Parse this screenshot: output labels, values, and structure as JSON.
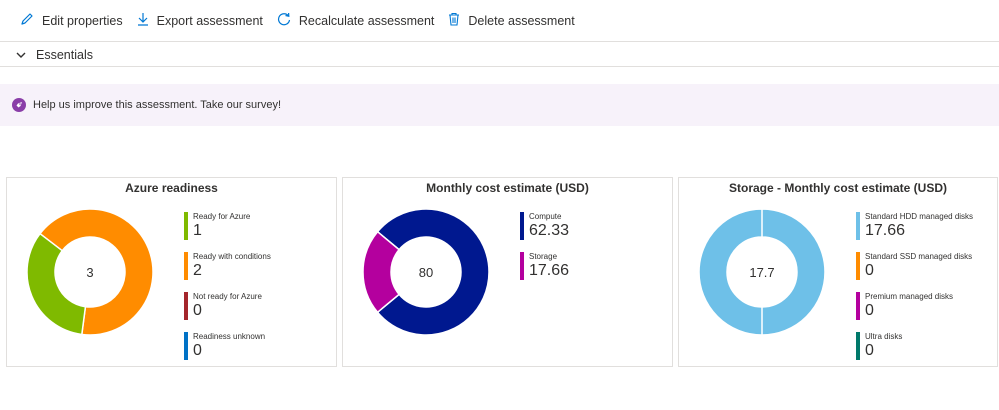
{
  "toolbar": {
    "edit_label": "Edit properties",
    "export_label": "Export assessment",
    "recalc_label": "Recalculate assessment",
    "delete_label": "Delete assessment"
  },
  "essentials": {
    "label": "Essentials"
  },
  "banner": {
    "text": "Help us improve this assessment. Take our survey!"
  },
  "cards": [
    {
      "title": "Azure readiness",
      "center": "3",
      "legend": [
        {
          "label": "Ready for Azure",
          "value": "1",
          "color": "#7fba00"
        },
        {
          "label": "Ready with conditions",
          "value": "2",
          "color": "#ff8c00"
        },
        {
          "label": "Not ready for Azure",
          "value": "0",
          "color": "#a4262c"
        },
        {
          "label": "Readiness unknown",
          "value": "0",
          "color": "#0072c6"
        }
      ]
    },
    {
      "title": "Monthly cost estimate (USD)",
      "center": "80",
      "legend": [
        {
          "label": "Compute",
          "value": "62.33",
          "color": "#00188f"
        },
        {
          "label": "Storage",
          "value": "17.66",
          "color": "#b4009e"
        }
      ]
    },
    {
      "title": "Storage - Monthly cost estimate (USD)",
      "center": "17.7",
      "legend": [
        {
          "label": "Standard HDD managed disks",
          "value": "17.66",
          "color": "#6ec0e8"
        },
        {
          "label": "Standard SSD managed disks",
          "value": "0",
          "color": "#ff8c00"
        },
        {
          "label": "Premium managed disks",
          "value": "0",
          "color": "#b4009e"
        },
        {
          "label": "Ultra disks",
          "value": "0",
          "color": "#00796b"
        }
      ]
    }
  ],
  "chart_data": [
    {
      "type": "pie",
      "title": "Azure readiness",
      "categories": [
        "Ready for Azure",
        "Ready with conditions",
        "Not ready for Azure",
        "Readiness unknown"
      ],
      "values": [
        1,
        2,
        0,
        0
      ],
      "colors": [
        "#7fba00",
        "#ff8c00",
        "#a4262c",
        "#0072c6"
      ]
    },
    {
      "type": "pie",
      "title": "Monthly cost estimate (USD)",
      "categories": [
        "Compute",
        "Storage"
      ],
      "values": [
        62.33,
        17.66
      ],
      "colors": [
        "#00188f",
        "#b4009e"
      ]
    },
    {
      "type": "pie",
      "title": "Storage - Monthly cost estimate (USD)",
      "categories": [
        "Standard HDD managed disks",
        "Standard SSD managed disks",
        "Premium managed disks",
        "Ultra disks"
      ],
      "values": [
        17.66,
        0,
        0,
        0
      ],
      "colors": [
        "#6ec0e8",
        "#ff8c00",
        "#b4009e",
        "#00796b"
      ]
    }
  ]
}
